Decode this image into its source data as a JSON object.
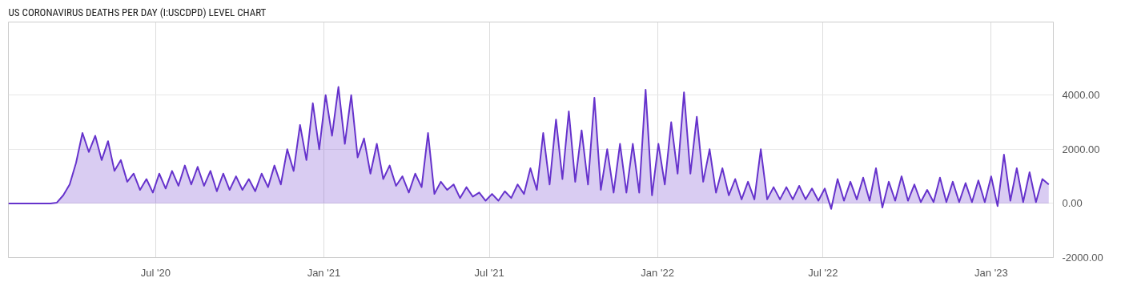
{
  "chart_data": {
    "type": "area",
    "title": "US CORONAVIRUS DEATHS PER DAY (I:USCDPD) LEVEL CHART",
    "x": [
      "2020-01-22",
      "2020-03-08",
      "2020-03-15",
      "2020-03-22",
      "2020-03-29",
      "2020-04-05",
      "2020-04-12",
      "2020-04-19",
      "2020-04-26",
      "2020-05-03",
      "2020-05-10",
      "2020-05-17",
      "2020-05-24",
      "2020-05-31",
      "2020-06-07",
      "2020-06-14",
      "2020-06-21",
      "2020-06-28",
      "2020-07-05",
      "2020-07-12",
      "2020-07-19",
      "2020-07-26",
      "2020-08-02",
      "2020-08-09",
      "2020-08-16",
      "2020-08-23",
      "2020-08-30",
      "2020-09-06",
      "2020-09-13",
      "2020-09-20",
      "2020-09-27",
      "2020-10-04",
      "2020-10-11",
      "2020-10-18",
      "2020-10-25",
      "2020-11-01",
      "2020-11-08",
      "2020-11-15",
      "2020-11-22",
      "2020-11-29",
      "2020-12-06",
      "2020-12-13",
      "2020-12-20",
      "2020-12-27",
      "2021-01-03",
      "2021-01-10",
      "2021-01-17",
      "2021-01-24",
      "2021-01-31",
      "2021-02-07",
      "2021-02-14",
      "2021-02-21",
      "2021-02-28",
      "2021-03-07",
      "2021-03-14",
      "2021-03-21",
      "2021-03-28",
      "2021-04-04",
      "2021-04-11",
      "2021-04-18",
      "2021-04-25",
      "2021-05-02",
      "2021-05-09",
      "2021-05-16",
      "2021-05-23",
      "2021-05-30",
      "2021-06-06",
      "2021-06-13",
      "2021-06-20",
      "2021-06-27",
      "2021-07-04",
      "2021-07-11",
      "2021-07-18",
      "2021-07-25",
      "2021-08-01",
      "2021-08-08",
      "2021-08-15",
      "2021-08-22",
      "2021-08-29",
      "2021-09-05",
      "2021-09-12",
      "2021-09-19",
      "2021-09-26",
      "2021-10-03",
      "2021-10-10",
      "2021-10-17",
      "2021-10-24",
      "2021-10-31",
      "2021-11-07",
      "2021-11-14",
      "2021-11-21",
      "2021-11-28",
      "2021-12-05",
      "2021-12-12",
      "2021-12-19",
      "2021-12-26",
      "2022-01-02",
      "2022-01-09",
      "2022-01-16",
      "2022-01-23",
      "2022-01-30",
      "2022-02-06",
      "2022-02-13",
      "2022-02-20",
      "2022-02-27",
      "2022-03-06",
      "2022-03-13",
      "2022-03-20",
      "2022-03-27",
      "2022-04-03",
      "2022-04-10",
      "2022-04-17",
      "2022-04-24",
      "2022-05-01",
      "2022-05-08",
      "2022-05-15",
      "2022-05-22",
      "2022-05-29",
      "2022-06-05",
      "2022-06-12",
      "2022-06-19",
      "2022-06-26",
      "2022-07-03",
      "2022-07-10",
      "2022-07-17",
      "2022-07-24",
      "2022-07-31",
      "2022-08-07",
      "2022-08-14",
      "2022-08-21",
      "2022-08-28",
      "2022-09-04",
      "2022-09-11",
      "2022-09-18",
      "2022-09-25",
      "2022-10-02",
      "2022-10-09",
      "2022-10-16",
      "2022-10-23",
      "2022-10-30",
      "2022-11-06",
      "2022-11-13",
      "2022-11-20",
      "2022-11-27",
      "2022-12-04",
      "2022-12-11",
      "2022-12-18",
      "2022-12-25",
      "2023-01-01",
      "2023-01-08",
      "2023-01-15",
      "2023-01-22",
      "2023-01-29",
      "2023-02-05",
      "2023-02-12",
      "2023-02-19",
      "2023-02-26",
      "2023-03-05"
    ],
    "series": [
      {
        "color": "#6633cc",
        "values": [
          0,
          0,
          30,
          300,
          700,
          1500,
          2600,
          1900,
          2500,
          1600,
          2300,
          1200,
          1600,
          800,
          1100,
          500,
          900,
          400,
          1100,
          550,
          1200,
          650,
          1400,
          700,
          1350,
          650,
          1200,
          450,
          1100,
          500,
          1000,
          500,
          900,
          450,
          1100,
          600,
          1400,
          700,
          2000,
          1200,
          2900,
          1600,
          3700,
          2000,
          4000,
          2500,
          4300,
          2200,
          4000,
          1700,
          2400,
          1100,
          2200,
          900,
          1400,
          650,
          1000,
          400,
          1100,
          600,
          2600,
          350,
          800,
          500,
          700,
          200,
          600,
          250,
          400,
          100,
          350,
          100,
          450,
          200,
          700,
          350,
          1300,
          500,
          2600,
          700,
          3100,
          900,
          3400,
          800,
          2700,
          700,
          3900,
          500,
          2000,
          400,
          2200,
          400,
          2200,
          400,
          4200,
          300,
          2200,
          700,
          3000,
          1100,
          4100,
          1100,
          3200,
          800,
          2000,
          400,
          1300,
          300,
          900,
          150,
          800,
          150,
          2000,
          150,
          600,
          150,
          600,
          150,
          650,
          150,
          550,
          100,
          550,
          -200,
          900,
          100,
          800,
          150,
          950,
          100,
          1300,
          -150,
          800,
          100,
          1000,
          100,
          700,
          50,
          500,
          50,
          950,
          50,
          800,
          50,
          750,
          50,
          850,
          50,
          1000,
          -100,
          1800,
          100,
          1300,
          50,
          1150,
          50,
          900,
          700
        ]
      }
    ],
    "xlim": [
      "2020-01-22",
      "2023-03-10"
    ],
    "xticks": [
      {
        "value": "2020-07-01",
        "label": "Jul '20"
      },
      {
        "value": "2021-01-01",
        "label": "Jan '21"
      },
      {
        "value": "2021-07-01",
        "label": "Jul '21"
      },
      {
        "value": "2022-01-01",
        "label": "Jan '22"
      },
      {
        "value": "2022-07-01",
        "label": "Jul '22"
      },
      {
        "value": "2023-01-01",
        "label": "Jan '23"
      }
    ],
    "ylim": [
      -2000,
      6700
    ],
    "yticks": [
      {
        "value": -2000,
        "label": "-2000.00"
      },
      {
        "value": 0,
        "label": "0.00"
      },
      {
        "value": 2000,
        "label": "2000.00"
      },
      {
        "value": 4000,
        "label": "4000.00"
      }
    ],
    "grid": true
  }
}
